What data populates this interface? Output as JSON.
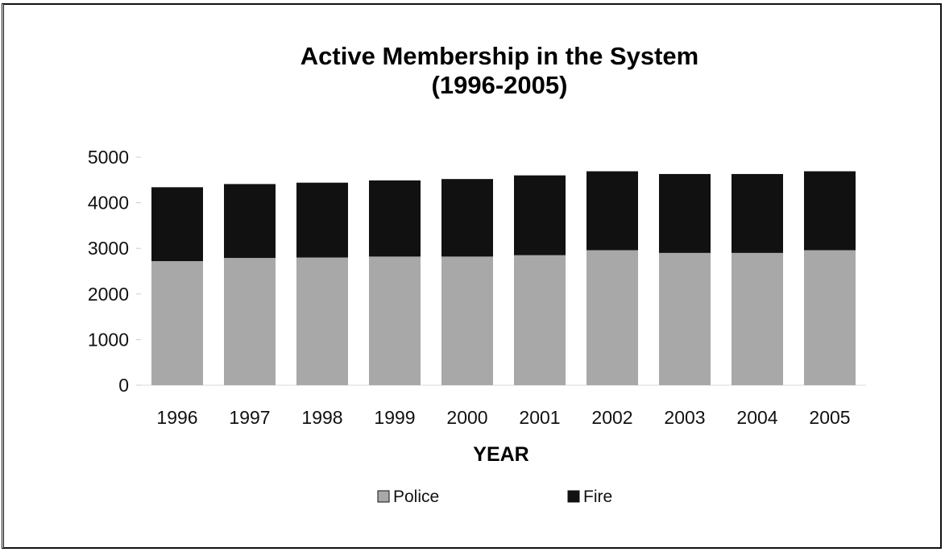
{
  "chart_data": {
    "type": "bar",
    "stacked": true,
    "title_line1": "Active Membership in the System",
    "title_line2": "(1996-2005)",
    "xlabel": "YEAR",
    "ylabel": "",
    "categories": [
      "1996",
      "1997",
      "1998",
      "1999",
      "2000",
      "2001",
      "2002",
      "2003",
      "2004",
      "2005"
    ],
    "series": [
      {
        "name": "Police",
        "values": [
          2720,
          2790,
          2800,
          2820,
          2820,
          2850,
          2960,
          2900,
          2900,
          2960
        ],
        "color": "#a8a8a8"
      },
      {
        "name": "Fire",
        "values": [
          1620,
          1620,
          1640,
          1670,
          1700,
          1750,
          1730,
          1730,
          1730,
          1730
        ],
        "color": "#111111"
      }
    ],
    "ylim": [
      0,
      5000
    ],
    "yticks": [
      "0",
      "1000",
      "2000",
      "3000",
      "4000",
      "5000"
    ],
    "grid": false,
    "legend_position": "bottom"
  }
}
